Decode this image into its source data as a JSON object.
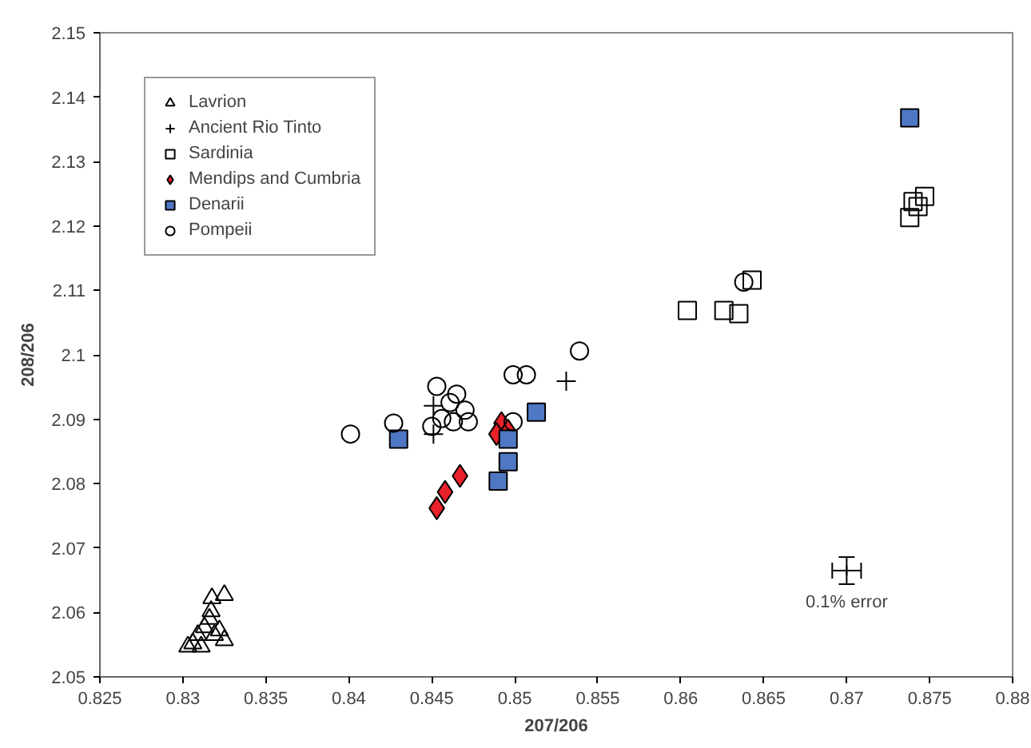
{
  "chart_data": {
    "type": "scatter",
    "xlabel": "207/206",
    "ylabel": "208/206",
    "xlim": [
      0.825,
      0.88
    ],
    "ylim": [
      2.05,
      2.15
    ],
    "xticks": [
      0.825,
      0.83,
      0.835,
      0.84,
      0.845,
      0.85,
      0.855,
      0.86,
      0.865,
      0.87,
      0.875,
      0.88
    ],
    "yticks": [
      2.05,
      2.06,
      2.07,
      2.08,
      2.09,
      2.1,
      2.11,
      2.12,
      2.13,
      2.14,
      2.15
    ],
    "grid": false,
    "legend": "top left",
    "annotations": [
      {
        "text": "0.1% error",
        "x": 0.87,
        "y": 2.0665
      }
    ],
    "series": [
      {
        "name": "Lavrion",
        "color": "#000000",
        "marker": "triangle",
        "x": [
          0.83175,
          0.8325,
          0.8306,
          0.8309,
          0.8313,
          0.8316,
          0.8319,
          0.8322,
          0.8325,
          0.8311,
          0.8303,
          0.8317
        ],
        "values": [
          2.0622,
          2.0627,
          2.0552,
          2.0565,
          2.0577,
          2.059,
          2.0565,
          2.0572,
          2.0557,
          2.0547,
          2.0547,
          2.0602
        ]
      },
      {
        "name": "Ancient Rio Tinto",
        "color": "#000000",
        "marker": "cross",
        "x": [
          0.8451,
          0.8451,
          0.8531
        ],
        "values": [
          2.0921,
          2.0877,
          2.0959
        ]
      },
      {
        "name": "Sardinia",
        "color": "#000000",
        "marker": "square",
        "x": [
          0.8738,
          0.8743,
          0.874,
          0.8747,
          0.8643,
          0.8604,
          0.8626,
          0.8635
        ],
        "values": [
          2.1213,
          2.123,
          2.1238,
          2.1246,
          2.1116,
          2.1069,
          2.1069,
          2.1064
        ]
      },
      {
        "name": "Mendips and Cumbria",
        "color": "#e8212a",
        "marker": "diamond",
        "x": [
          0.8453,
          0.8458,
          0.8467,
          0.8492,
          0.8496,
          0.8489
        ],
        "values": [
          2.0762,
          2.0787,
          2.0812,
          2.0894,
          2.0882,
          2.0877
        ]
      },
      {
        "name": "Denarii",
        "color": "#4f78c4",
        "marker": "square",
        "x": [
          0.8738,
          0.843,
          0.8513,
          0.8496,
          0.849,
          0.8496
        ],
        "values": [
          2.1368,
          2.0869,
          2.0911,
          2.0834,
          2.0804,
          2.0869
        ]
      },
      {
        "name": "Pompeii",
        "color": "#000000",
        "marker": "circle",
        "x": [
          0.8401,
          0.8427,
          0.8453,
          0.8461,
          0.8465,
          0.8456,
          0.847,
          0.845,
          0.8463,
          0.8472,
          0.8499,
          0.8507,
          0.8499,
          0.8539,
          0.8638
        ],
        "values": [
          2.0877,
          2.0894,
          2.0951,
          2.0926,
          2.0939,
          2.0901,
          2.0914,
          2.0889,
          2.0896,
          2.0896,
          2.0969,
          2.0969,
          2.0896,
          2.1006,
          2.1113
        ]
      },
      {
        "color": "#000000",
        "marker": "cross",
        "x": [
          0.87
        ],
        "values": [
          2.0665
        ],
        "errors": [
          0.0021
        ],
        "xerrors": [
          0.00087
        ]
      }
    ]
  }
}
